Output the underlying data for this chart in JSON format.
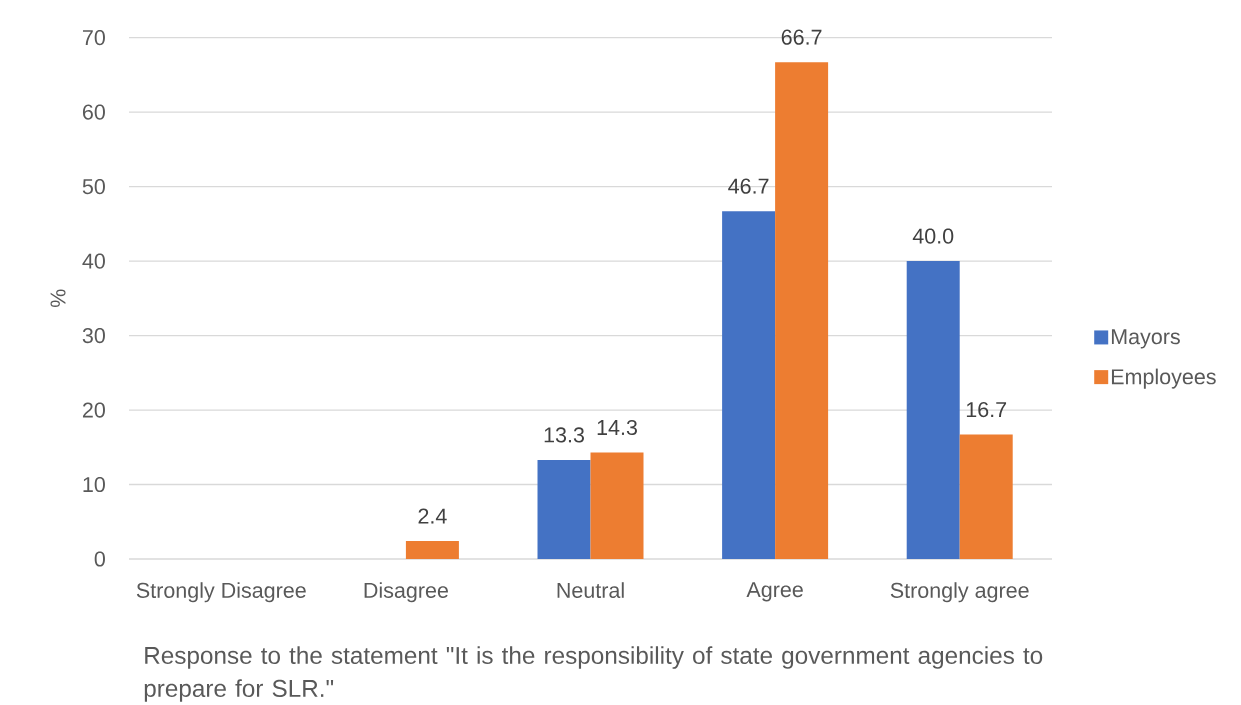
{
  "chart_data": {
    "type": "bar",
    "xlabel": "Response to the statement \"It is the responsibility of state government agencies to prepare for SLR.\"",
    "ylabel": "%",
    "categories": [
      "Strongly Disagree",
      "Disagree",
      "Neutral",
      "Agree",
      "Strongly agree"
    ],
    "series": [
      {
        "name": "Mayors",
        "color": "#4472c4",
        "values": [
          null,
          null,
          13.3,
          46.7,
          40.0
        ],
        "value_labels": [
          null,
          null,
          "13.3",
          "46.7",
          "40.0"
        ]
      },
      {
        "name": "Employees",
        "color": "#ed7d31",
        "values": [
          null,
          2.4,
          14.3,
          66.7,
          16.7
        ],
        "value_labels": [
          null,
          "2.4",
          "14.3",
          "66.7",
          "16.7"
        ]
      }
    ],
    "ylim": [
      0,
      70
    ],
    "yticks": [
      0,
      10,
      20,
      30,
      40,
      50,
      60,
      70
    ],
    "grid": "y",
    "legend": "right"
  }
}
